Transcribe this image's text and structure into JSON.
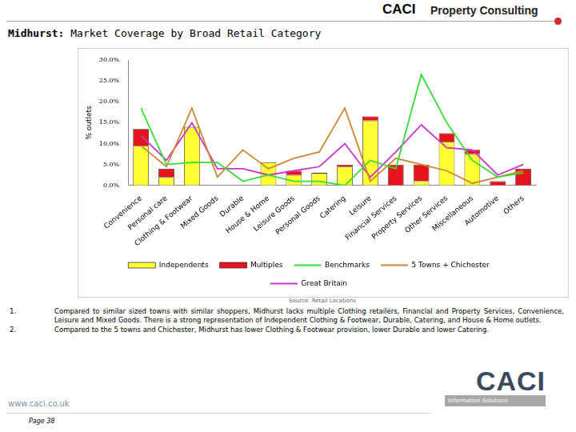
{
  "header": {
    "brand": "CACI",
    "division": "Property Consulting"
  },
  "title_place": "Midhurst:",
  "title": "Market Coverage by Broad Retail Category",
  "chart_data": {
    "type": "bar",
    "stacked": true,
    "y_label": "% outlets",
    "categories": [
      "Convenience",
      "Personal care",
      "Clothing & Footwear",
      "Mixed Goods",
      "Durable",
      "House & Home",
      "Leisure Goods",
      "Personal Goods",
      "Catering",
      "Leisure",
      "Financial Services",
      "Property Services",
      "Other Services",
      "Miscellaneous",
      "Automotive",
      "Others"
    ],
    "ylim": [
      0,
      30
    ],
    "yticks": [
      {
        "value": 0,
        "label": "0.0%"
      },
      {
        "value": 5,
        "label": "5.0%"
      },
      {
        "value": 10,
        "label": "10.0%"
      },
      {
        "value": 15,
        "label": "15.0%"
      },
      {
        "value": 20,
        "label": "20.0%"
      },
      {
        "value": 25,
        "label": "25.0%"
      },
      {
        "value": 30,
        "label": "30.0%"
      }
    ],
    "grid": false,
    "legend": "bottom",
    "series": [
      {
        "name": "Independents",
        "type": "bar",
        "color": "#ffff33",
        "values": [
          9.5,
          2,
          14,
          0,
          0,
          5.5,
          2.5,
          3,
          4.5,
          15.5,
          0,
          1,
          10.5,
          7.5,
          0,
          0
        ]
      },
      {
        "name": "Multiples",
        "type": "bar",
        "color": "#e8141c",
        "values": [
          4,
          2,
          0,
          0,
          0,
          0,
          1,
          0,
          0.5,
          1,
          5,
          4,
          2,
          1,
          1,
          4
        ]
      },
      {
        "name": "Benchmarks",
        "type": "line",
        "color": "#33dd33",
        "line_style": "solid",
        "marker": "none",
        "values": [
          18.5,
          5,
          5.5,
          5.5,
          1,
          2.5,
          1,
          1,
          0,
          6,
          4,
          26.5,
          15,
          6,
          2,
          3
        ]
      },
      {
        "name": "5 Towns + Chichester",
        "type": "line",
        "color": "#cc8833",
        "line_style": "solid",
        "marker": "none",
        "values": [
          9.5,
          4.5,
          18.5,
          2,
          8.5,
          4,
          6.5,
          8,
          18.5,
          1,
          6.5,
          5,
          3.5,
          0.5,
          2,
          3.5
        ]
      },
      {
        "name": "Great Britain",
        "type": "line",
        "color": "#cc33cc",
        "line_style": "solid",
        "marker": "none",
        "values": [
          12,
          6,
          15,
          4,
          4,
          2.5,
          3.5,
          4.5,
          10,
          2,
          8,
          14.5,
          9,
          8.5,
          2.5,
          5
        ]
      }
    ]
  },
  "source": "Source: Retail Locations",
  "notes": [
    {
      "number": "1.",
      "text": "Compared to similar sized towns with similar shoppers, Midhurst lacks multiple Clothing retailers, Financial and Property Services, Convenience, Leisure and Mixed Goods.  There is a strong representation of Independent Clothing & Footwear, Durable, Catering, and House & Home outlets."
    },
    {
      "number": "2.",
      "text": "Compared to the 5 towns and Chichester, Midhurst has lower Clothing & Footwear provision, lower Durable and lower Catering."
    }
  ],
  "footer": {
    "website": "www.caci.co.uk",
    "page": "Page 38"
  },
  "logo": {
    "name": "CACI",
    "tagline": "Information Solutions"
  }
}
